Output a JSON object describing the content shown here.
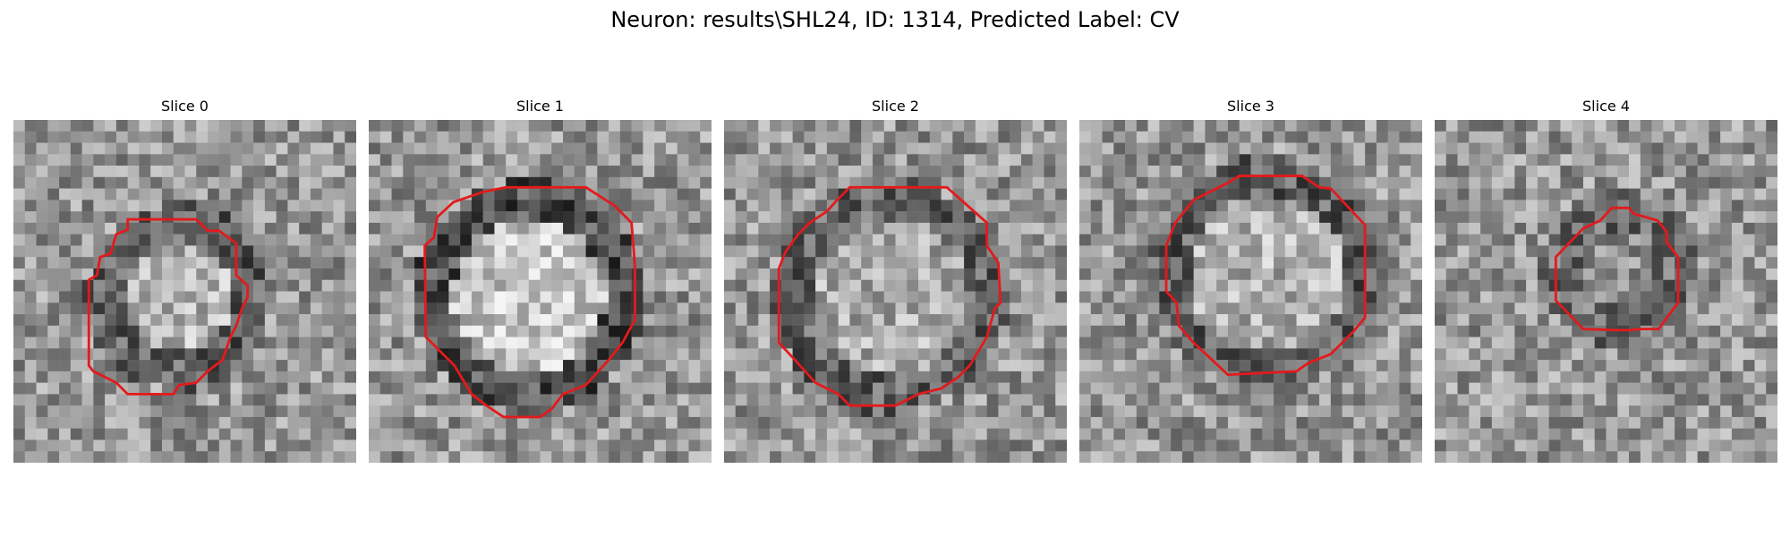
{
  "figure": {
    "title": "Neuron: results\\SHL24, ID: 1314, Predicted Label: CV"
  },
  "panels": [
    {
      "title": "Slice 0",
      "contour_color": "#e31a1c"
    },
    {
      "title": "Slice 1",
      "contour_color": "#e31a1c"
    },
    {
      "title": "Slice 2",
      "contour_color": "#e31a1c"
    },
    {
      "title": "Slice 3",
      "contour_color": "#e31a1c"
    },
    {
      "title": "Slice 4",
      "contour_color": "#e31a1c"
    }
  ]
}
